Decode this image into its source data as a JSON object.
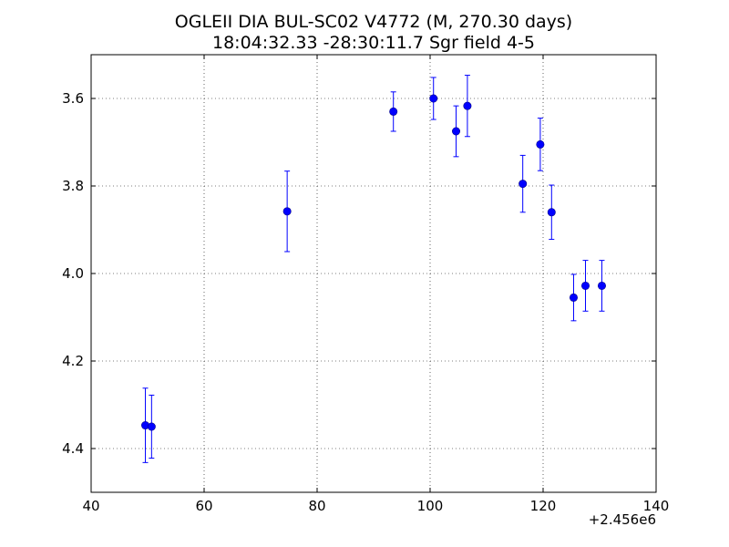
{
  "chart_data": {
    "type": "scatter",
    "title": "OGLEII DIA BUL-SC02 V4772 (M, 270.30 days)",
    "subtitle": "18:04:32.33 -28:30:11.7 Sgr field 4-5",
    "xlabel": "",
    "ylabel": "",
    "x_offset_label": "+2.456e6",
    "xlim": [
      40,
      140
    ],
    "ylim": [
      4.5,
      3.5
    ],
    "y_inverted": true,
    "x_ticks": [
      40,
      60,
      80,
      100,
      120,
      140
    ],
    "y_ticks": [
      3.6,
      3.8,
      4.0,
      4.2,
      4.4
    ],
    "x_tick_labels": [
      "40",
      "60",
      "80",
      "100",
      "120",
      "140"
    ],
    "y_tick_labels": [
      "3.6",
      "3.8",
      "4.0",
      "4.2",
      "4.4"
    ],
    "grid": true,
    "marker_color": "#0000ff",
    "points": [
      {
        "x": 49.6,
        "y": 4.347,
        "err": 0.085
      },
      {
        "x": 50.7,
        "y": 4.35,
        "err": 0.072
      },
      {
        "x": 74.7,
        "y": 3.858,
        "err": 0.092
      },
      {
        "x": 93.5,
        "y": 3.63,
        "err": 0.045
      },
      {
        "x": 100.6,
        "y": 3.6,
        "err": 0.048
      },
      {
        "x": 104.6,
        "y": 3.675,
        "err": 0.058
      },
      {
        "x": 106.6,
        "y": 3.617,
        "err": 0.07
      },
      {
        "x": 116.4,
        "y": 3.795,
        "err": 0.065
      },
      {
        "x": 119.5,
        "y": 3.705,
        "err": 0.06
      },
      {
        "x": 121.5,
        "y": 3.86,
        "err": 0.062
      },
      {
        "x": 125.4,
        "y": 4.055,
        "err": 0.053
      },
      {
        "x": 127.5,
        "y": 4.028,
        "err": 0.058
      },
      {
        "x": 130.4,
        "y": 4.028,
        "err": 0.058
      }
    ]
  }
}
